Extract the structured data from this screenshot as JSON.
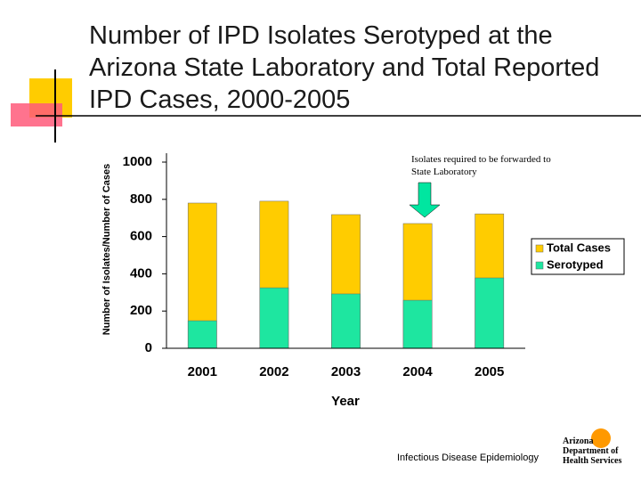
{
  "chart_data": {
    "type": "bar",
    "title": "Number of IPD Isolates Serotyped at the Arizona State Laboratory and Total Reported IPD Cases, 2000-2005",
    "y_label": "Number of Isolates/Number of Cases",
    "x_label": "Year",
    "annotation": "Isolates required to be forwarded to State Laboratory",
    "categories": [
      "2001",
      "2002",
      "2003",
      "2004",
      "2005"
    ],
    "series": [
      {
        "name": "Total Cases",
        "color": "#ffcc00",
        "values": [
          780,
          790,
          718,
          670,
          722
        ]
      },
      {
        "name": "Serotyped",
        "color": "#1ee6a0",
        "values": [
          148,
          325,
          292,
          258,
          378
        ]
      }
    ],
    "overlap": true,
    "ylim": [
      0,
      1000
    ],
    "yticks": [
      0,
      200,
      400,
      600,
      800,
      1000
    ],
    "grid": false,
    "legend": "right"
  },
  "footer": "Infectious Disease Epidemiology",
  "logo": [
    "Arizona",
    "Department of",
    "Health Services"
  ]
}
